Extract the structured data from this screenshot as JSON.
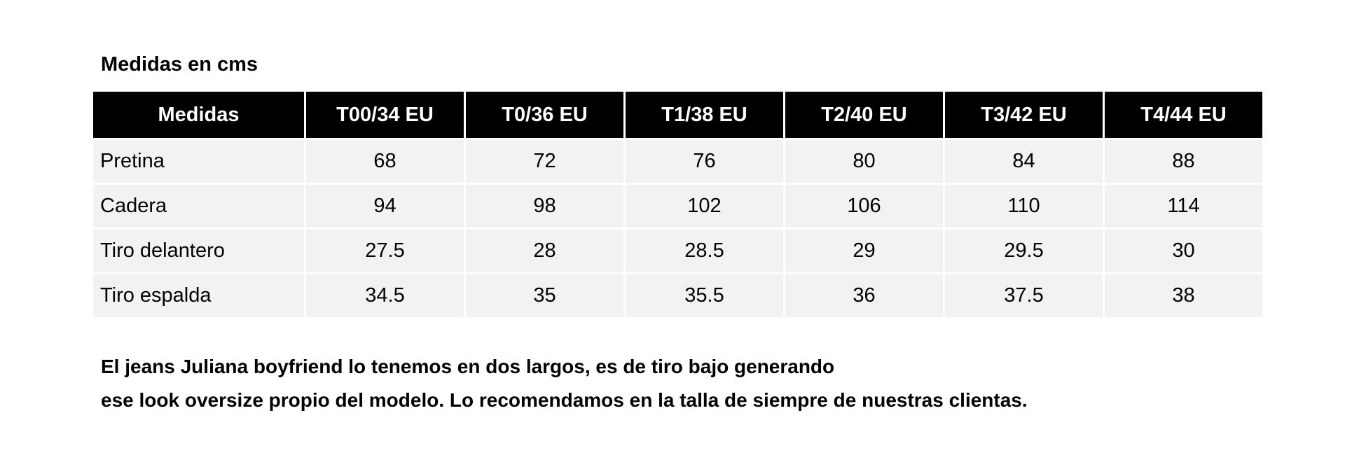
{
  "title": "Medidas en cms",
  "table": {
    "headers": [
      "Medidas",
      "T00/34 EU",
      "T0/36 EU",
      "T1/38 EU",
      "T2/40 EU",
      "T3/42 EU",
      "T4/44 EU"
    ],
    "rows": [
      [
        "Pretina",
        "68",
        "72",
        "76",
        "80",
        "84",
        "88"
      ],
      [
        "Cadera",
        "94",
        "98",
        "102",
        "106",
        "110",
        "114"
      ],
      [
        "Tiro delantero",
        "27.5",
        "28",
        "28.5",
        "29",
        "29.5",
        "30"
      ],
      [
        "Tiro espalda",
        "34.5",
        "35",
        "35.5",
        "36",
        "37.5",
        "38"
      ]
    ]
  },
  "note": {
    "line1": "El jeans Juliana boyfriend lo tenemos en dos largos, es de tiro bajo generando",
    "line2": "ese look oversize propio del modelo. Lo recomendamos en la talla de siempre de nuestras clientas."
  }
}
